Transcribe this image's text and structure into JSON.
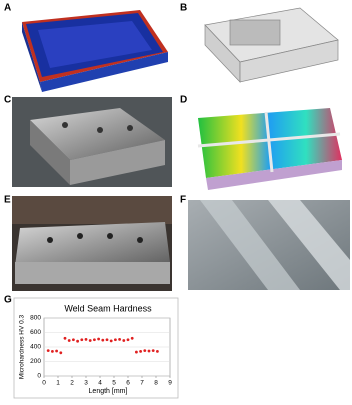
{
  "panels": {
    "a": "A",
    "b": "B",
    "c": "C",
    "d": "D",
    "e": "E",
    "f": "F",
    "g": "G"
  },
  "chart_data": {
    "type": "scatter",
    "title": "Weld Seam Hardness",
    "x_label": "Length [mm]",
    "y_label": "Microhardness HV 0.3",
    "x": [
      0.3,
      0.6,
      0.9,
      1.2,
      1.5,
      1.8,
      2.1,
      2.4,
      2.7,
      3.0,
      3.3,
      3.6,
      3.9,
      4.2,
      4.5,
      4.8,
      5.1,
      5.4,
      5.7,
      6.0,
      6.3,
      6.6,
      6.9,
      7.2,
      7.5,
      7.8,
      8.1
    ],
    "values": [
      350,
      340,
      345,
      320,
      520,
      490,
      500,
      480,
      500,
      505,
      490,
      500,
      510,
      495,
      500,
      485,
      500,
      505,
      490,
      500,
      520,
      330,
      340,
      350,
      345,
      350,
      340
    ],
    "color": "#e02020",
    "xlim": [
      0,
      9
    ],
    "xticks": [
      0,
      1,
      2,
      3,
      4,
      5,
      6,
      7,
      8,
      9
    ],
    "ylim": [
      0,
      800
    ],
    "yticks": [
      0,
      200,
      400,
      600,
      800
    ],
    "grid": true
  }
}
